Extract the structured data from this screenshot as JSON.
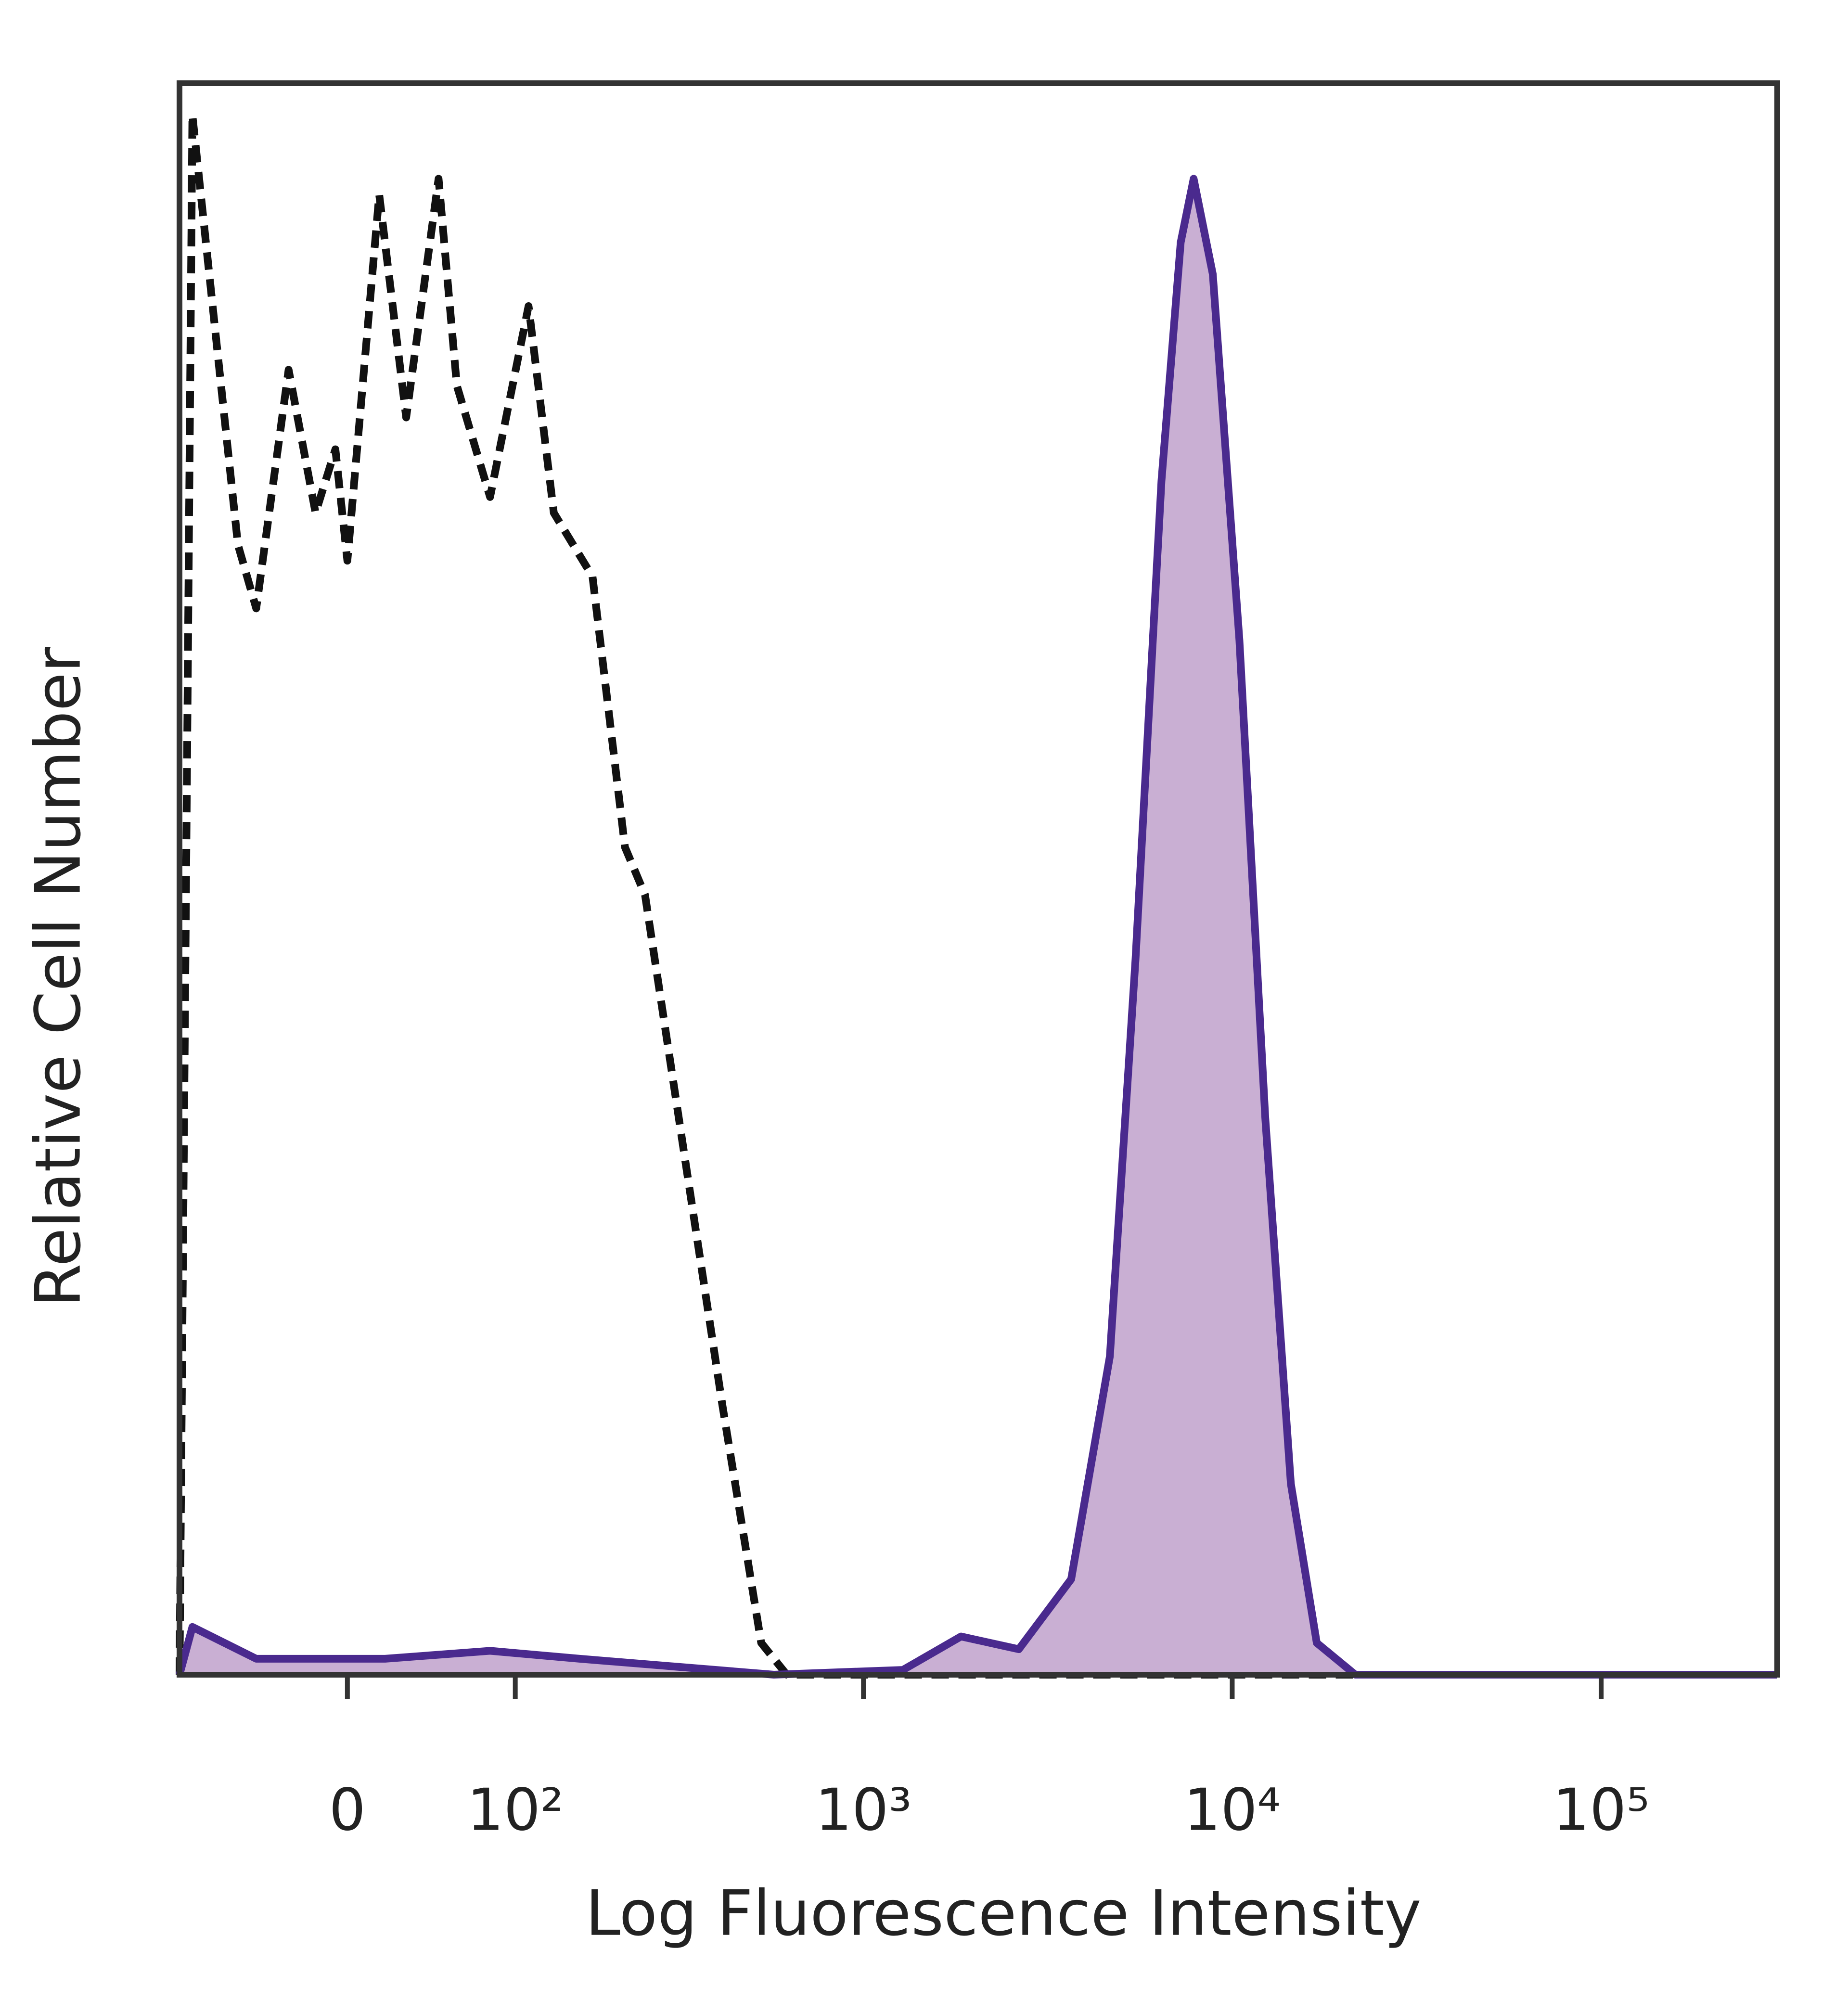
{
  "chart_data": {
    "type": "histogram-overlay",
    "xlabel": "Log Fluorescence Intensity",
    "ylabel": "Relative Cell Number",
    "xscale": "biexponential",
    "xlim": [
      -100,
      300000
    ],
    "ylim": [
      0,
      100
    ],
    "xticks": [
      0,
      {
        "value": 100,
        "label": "10²"
      },
      {
        "value": 1000,
        "label": "10³"
      },
      {
        "value": 10000,
        "label": "10⁴"
      },
      {
        "value": 100000,
        "label": "10⁵"
      }
    ],
    "series": [
      {
        "color": "#111111",
        "linestyle": "dashed",
        "x": [
          -100,
          -90,
          -59,
          -48,
          -30,
          -16,
          -6,
          0,
          16,
          30,
          48,
          59,
          81,
          111,
          134,
          176,
          219,
          250,
          321,
          411,
          526,
          618,
          300000
        ],
        "values": [
          0,
          98,
          71,
          67,
          82,
          73,
          77,
          70,
          93,
          79,
          94,
          81,
          74,
          86,
          73,
          69,
          52,
          49,
          33,
          17,
          2,
          0,
          0
        ]
      },
      {
        "color": "#4a2a8e",
        "fill": "#c9afd3",
        "linestyle": "solid",
        "x": [
          -100,
          -90,
          -48,
          19,
          81,
          161,
          570,
          1280,
          1840,
          2640,
          3660,
          4660,
          5470,
          6430,
          7250,
          7860,
          8860,
          10460,
          12290,
          14420,
          16950,
          21560,
          300000
        ],
        "values": [
          0,
          3,
          1,
          1,
          1.5,
          1,
          0,
          0.3,
          2.4,
          1.6,
          6,
          20,
          45,
          75,
          90,
          94,
          88,
          65,
          35,
          12,
          2,
          0,
          0
        ]
      }
    ]
  }
}
